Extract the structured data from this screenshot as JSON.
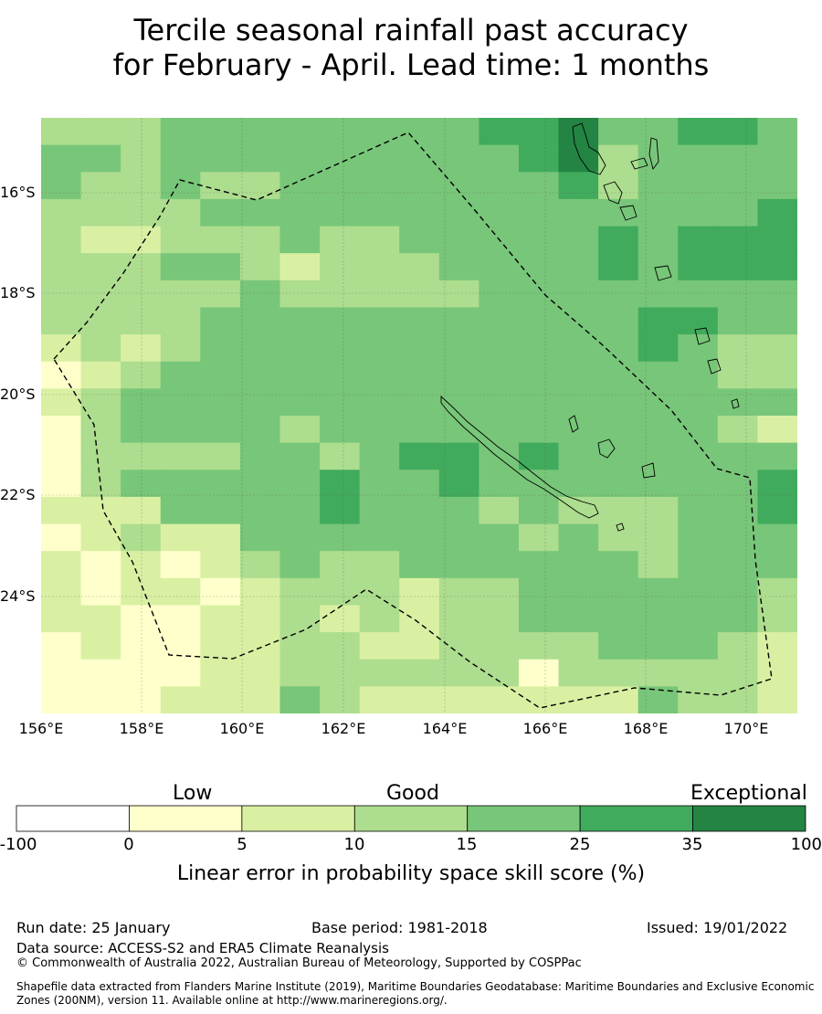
{
  "title": {
    "line1": "Tercile seasonal rainfall past accuracy",
    "line2": "for February - April. Lead time: 1 months"
  },
  "map": {
    "lat_labels": [
      "16°S",
      "18°S",
      "20°S",
      "22°S",
      "24°S"
    ],
    "lon_labels": [
      "156°E",
      "158°E",
      "160°E",
      "162°E",
      "164°E",
      "166°E",
      "168°E",
      "170°E"
    ],
    "grid_levels": [
      [
        3,
        3,
        3,
        4,
        4,
        4,
        4,
        4,
        4,
        4,
        4,
        5,
        5,
        6,
        4,
        4,
        5,
        5,
        4
      ],
      [
        4,
        4,
        3,
        4,
        4,
        4,
        4,
        4,
        4,
        4,
        4,
        4,
        5,
        6,
        3,
        4,
        4,
        4,
        4
      ],
      [
        4,
        3,
        3,
        4,
        3,
        3,
        4,
        4,
        4,
        4,
        4,
        4,
        4,
        5,
        3,
        4,
        4,
        4,
        4
      ],
      [
        3,
        3,
        3,
        3,
        4,
        4,
        4,
        4,
        4,
        4,
        4,
        4,
        4,
        4,
        4,
        4,
        4,
        4,
        5
      ],
      [
        3,
        2,
        2,
        3,
        3,
        3,
        4,
        3,
        3,
        4,
        4,
        4,
        4,
        4,
        5,
        4,
        5,
        5,
        5
      ],
      [
        3,
        3,
        3,
        4,
        4,
        3,
        2,
        3,
        3,
        3,
        4,
        4,
        4,
        4,
        5,
        4,
        5,
        5,
        5
      ],
      [
        3,
        3,
        3,
        3,
        3,
        4,
        3,
        3,
        3,
        3,
        3,
        4,
        4,
        4,
        4,
        4,
        4,
        4,
        4
      ],
      [
        3,
        3,
        3,
        3,
        4,
        4,
        4,
        4,
        4,
        4,
        4,
        4,
        4,
        4,
        4,
        5,
        5,
        4,
        4
      ],
      [
        2,
        3,
        2,
        3,
        4,
        4,
        4,
        4,
        4,
        4,
        4,
        4,
        4,
        4,
        4,
        5,
        4,
        3,
        3
      ],
      [
        1,
        2,
        3,
        4,
        4,
        4,
        4,
        4,
        4,
        4,
        4,
        4,
        4,
        4,
        4,
        4,
        4,
        3,
        3
      ],
      [
        2,
        3,
        4,
        4,
        4,
        4,
        4,
        4,
        4,
        4,
        4,
        4,
        4,
        4,
        4,
        4,
        4,
        4,
        4
      ],
      [
        1,
        3,
        4,
        4,
        4,
        4,
        3,
        4,
        4,
        4,
        4,
        4,
        4,
        4,
        4,
        4,
        4,
        3,
        2
      ],
      [
        1,
        3,
        3,
        3,
        3,
        4,
        4,
        3,
        4,
        5,
        5,
        4,
        5,
        4,
        4,
        4,
        4,
        4,
        4
      ],
      [
        1,
        3,
        4,
        4,
        4,
        4,
        4,
        5,
        4,
        4,
        5,
        4,
        4,
        4,
        4,
        4,
        4,
        4,
        5
      ],
      [
        2,
        2,
        2,
        4,
        4,
        4,
        4,
        5,
        4,
        4,
        4,
        3,
        4,
        3,
        3,
        3,
        4,
        4,
        5
      ],
      [
        1,
        2,
        3,
        2,
        2,
        4,
        4,
        4,
        4,
        4,
        4,
        4,
        3,
        4,
        3,
        3,
        4,
        4,
        4
      ],
      [
        2,
        1,
        2,
        1,
        2,
        3,
        4,
        3,
        3,
        4,
        4,
        4,
        4,
        4,
        4,
        3,
        4,
        4,
        4
      ],
      [
        2,
        1,
        2,
        2,
        1,
        2,
        3,
        3,
        3,
        2,
        3,
        3,
        4,
        4,
        4,
        4,
        4,
        4,
        3
      ],
      [
        2,
        2,
        1,
        1,
        2,
        2,
        3,
        2,
        3,
        2,
        3,
        3,
        4,
        4,
        4,
        4,
        4,
        4,
        3
      ],
      [
        1,
        2,
        1,
        1,
        2,
        2,
        3,
        3,
        2,
        2,
        3,
        3,
        3,
        3,
        4,
        4,
        4,
        3,
        2
      ],
      [
        1,
        1,
        1,
        1,
        2,
        2,
        3,
        3,
        3,
        3,
        3,
        3,
        1,
        3,
        3,
        3,
        3,
        3,
        2
      ],
      [
        1,
        1,
        1,
        2,
        2,
        2,
        4,
        3,
        2,
        2,
        2,
        2,
        2,
        2,
        2,
        4,
        3,
        3,
        2
      ]
    ],
    "boundary_style": "dashed"
  },
  "colorbar": {
    "categories": [
      "Low",
      "Good",
      "Exceptional"
    ],
    "ticks": [
      "-100",
      "0",
      "5",
      "10",
      "15",
      "25",
      "35",
      "100"
    ],
    "colors": [
      "#ffffff",
      "#ffffcc",
      "#d9f0a3",
      "#addd8e",
      "#78c679",
      "#41ab5d",
      "#238443"
    ],
    "label": "Linear error in probability space skill score (%)"
  },
  "footer": {
    "run_date": "Run date: 25 January",
    "base_period": "Base period: 1981-2018",
    "issued": "Issued: 19/01/2022",
    "data_source": "Data source: ACCESS-S2 and ERA5 Climate Reanalysis",
    "copyright": "© Commonwealth of Australia 2022, Australian Bureau of Meteorology, Supported by COSPPac",
    "shapefile_line1": "Shapefile data extracted from Flanders Marine Institute (2019), Maritime Boundaries Geodatabase: Maritime Boundaries and Exclusive Economic",
    "shapefile_line2": "Zones (200NM), version 11. Available online at http://www.marineregions.org/."
  }
}
